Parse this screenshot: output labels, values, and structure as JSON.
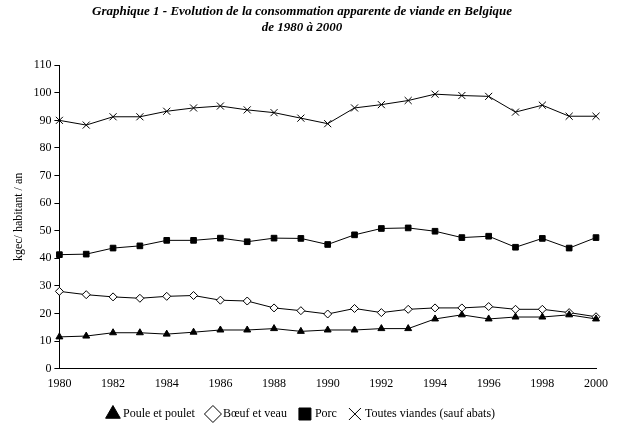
{
  "chart_data": {
    "type": "line",
    "title": [
      "Graphique 1 - Evolution de la consommation apparente de viande en Belgique",
      "de 1980 à 2000"
    ],
    "y_label": "kgec/ habitant / an",
    "categories": [
      "1980",
      null,
      "1982",
      null,
      "1984",
      null,
      "1986",
      null,
      "1988",
      null,
      "1990",
      null,
      "1992",
      null,
      "1994",
      null,
      "1996",
      null,
      "1998",
      null,
      "2000"
    ],
    "series": [
      {
        "name": "Poule et poulet",
        "color": "#000000",
        "marker": "triangle",
        "values": [
          11.5,
          11.8,
          13,
          13,
          12.5,
          13.2,
          14,
          14,
          14.5,
          13.5,
          14,
          14,
          14.5,
          14.5,
          18,
          19.5,
          18,
          18.7,
          18.7,
          19.5,
          18
        ]
      },
      {
        "name": "Bœuf et veau",
        "color": "#000000",
        "marker": "diamond",
        "values": [
          28,
          26.8,
          26,
          25.5,
          26.2,
          26.5,
          24.8,
          24.5,
          22,
          21,
          19.8,
          21.8,
          20.3,
          21.5,
          22,
          22,
          22.5,
          21.5,
          21.5,
          20.3,
          18.8
        ]
      },
      {
        "name": "Porc",
        "color": "#000000",
        "marker": "square",
        "values": [
          41.3,
          41.5,
          43.7,
          44.5,
          46.5,
          46.5,
          47.3,
          46,
          47.3,
          47.2,
          45,
          48.5,
          50.8,
          51,
          49.8,
          47.5,
          48,
          44,
          47.2,
          43.7,
          47.5
        ]
      },
      {
        "name": "Toutes viandes (sauf abats)",
        "color": "#000000",
        "marker": "x",
        "values": [
          90,
          88.3,
          91.3,
          91.3,
          93.3,
          94.5,
          95.2,
          93.8,
          92.8,
          90.8,
          88.8,
          94.5,
          95.7,
          97.2,
          99.5,
          99,
          98.7,
          93,
          95.5,
          91.5,
          91.5
        ]
      }
    ],
    "ylim": [
      0,
      110
    ],
    "yticks": [
      0,
      10,
      20,
      30,
      40,
      50,
      60,
      70,
      80,
      90,
      100,
      110
    ],
    "grid": false,
    "legend": "bottom"
  }
}
